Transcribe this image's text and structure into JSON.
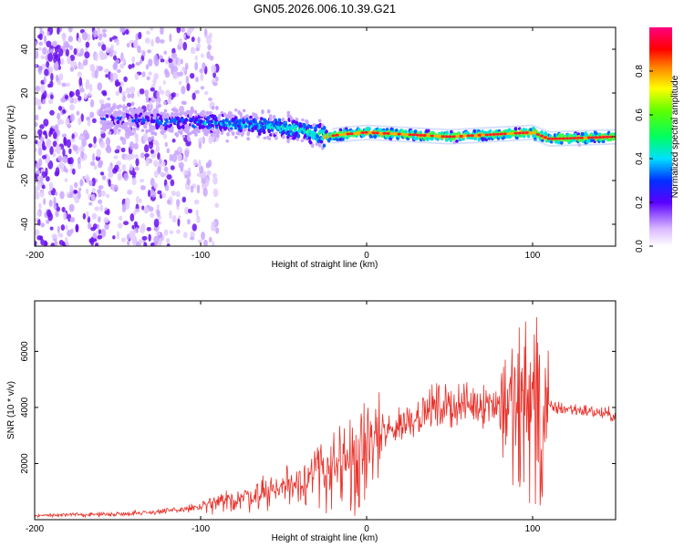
{
  "title": "GN05.2026.006.10.39.G21",
  "chart_data": [
    {
      "type": "heatmap",
      "xlabel": "Height of straight line (km)",
      "ylabel": "Frequency (Hz)",
      "xlim": [
        -200,
        150
      ],
      "ylim": [
        -50,
        50
      ],
      "xticks": [
        -200,
        -100,
        0,
        100
      ],
      "yticks": [
        -40,
        -20,
        0,
        20,
        40
      ],
      "colorbar": {
        "label": "Normalized spectral amplitude",
        "ticks": [
          "0.0",
          "0.2",
          "0.4",
          "0.6",
          "0.8"
        ],
        "range": [
          0,
          1
        ]
      },
      "ridge": [
        {
          "x": -150,
          "y": 8
        },
        {
          "x": -120,
          "y": 7
        },
        {
          "x": -90,
          "y": 6
        },
        {
          "x": -60,
          "y": 5
        },
        {
          "x": -40,
          "y": 3
        },
        {
          "x": -25,
          "y": 0
        },
        {
          "x": -15,
          "y": 1
        },
        {
          "x": 0,
          "y": 2
        },
        {
          "x": 50,
          "y": 0
        },
        {
          "x": 100,
          "y": 2
        },
        {
          "x": 110,
          "y": -1
        },
        {
          "x": 150,
          "y": 0
        }
      ]
    },
    {
      "type": "line",
      "xlabel": "Height of straight line (km)",
      "ylabel": "SNR (10 * v/v)",
      "xlim": [
        -200,
        150
      ],
      "ylim": [
        0,
        7800
      ],
      "xticks": [
        -200,
        -100,
        0,
        100
      ],
      "yticks": [
        2000,
        4000,
        6000
      ],
      "color": "#e8312a",
      "trend": [
        {
          "x": -200,
          "y": 150
        },
        {
          "x": -150,
          "y": 200
        },
        {
          "x": -120,
          "y": 300
        },
        {
          "x": -100,
          "y": 450
        },
        {
          "x": -80,
          "y": 700
        },
        {
          "x": -60,
          "y": 1000
        },
        {
          "x": -40,
          "y": 1400
        },
        {
          "x": -20,
          "y": 2000
        },
        {
          "x": 0,
          "y": 2600
        },
        {
          "x": 20,
          "y": 3400
        },
        {
          "x": 40,
          "y": 4000
        },
        {
          "x": 60,
          "y": 4100
        },
        {
          "x": 80,
          "y": 4200
        },
        {
          "x": 95,
          "y": 4300
        },
        {
          "x": 110,
          "y": 4000
        },
        {
          "x": 130,
          "y": 3900
        },
        {
          "x": 150,
          "y": 3700
        }
      ]
    }
  ]
}
